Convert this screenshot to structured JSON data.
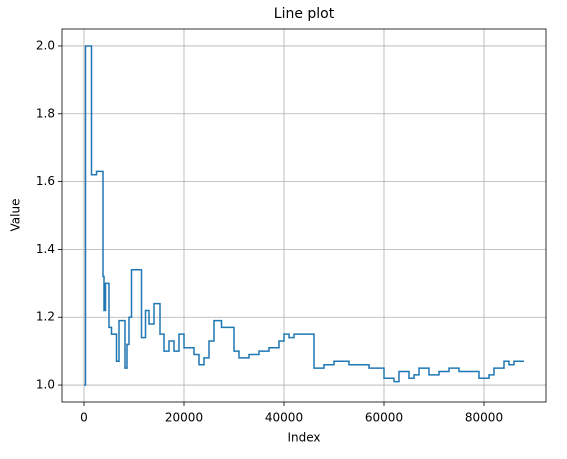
{
  "chart_data": {
    "type": "line",
    "title": "Line plot",
    "x_label": "Index",
    "y_label": "Value",
    "drawstyle": "steps-post",
    "grid": true,
    "xlim": [
      -4400,
      92400
    ],
    "ylim": [
      0.95,
      2.05
    ],
    "xticks": [
      0,
      20000,
      40000,
      60000,
      80000
    ],
    "yticks": [
      {
        "value": 1.0,
        "label": "1.0"
      },
      {
        "value": 1.2,
        "label": "1.2"
      },
      {
        "value": 1.4,
        "label": "1.4"
      },
      {
        "value": 1.6,
        "label": "1.6"
      },
      {
        "value": 1.8,
        "label": "1.8"
      },
      {
        "value": 2.0,
        "label": "2.0"
      }
    ],
    "x": [
      0,
      300,
      1500,
      2500,
      3800,
      4000,
      4300,
      5000,
      5500,
      6500,
      7000,
      8200,
      8600,
      9000,
      9500,
      11500,
      12300,
      13000,
      14000,
      15200,
      16000,
      17000,
      18000,
      19000,
      20000,
      22000,
      23000,
      24000,
      25000,
      26000,
      27500,
      30000,
      31000,
      33000,
      35000,
      37000,
      39000,
      40000,
      41000,
      42000,
      46000,
      48000,
      50000,
      53000,
      55000,
      57000,
      59000,
      60000,
      62000,
      63000,
      65000,
      66000,
      67000,
      69000,
      71000,
      73000,
      75000,
      78000,
      79000,
      81000,
      82000,
      84000,
      85000,
      86000,
      88000
    ],
    "series": [
      {
        "name": "Value",
        "color": "#1f77b4",
        "values": [
          1.0,
          2.0,
          1.62,
          1.63,
          1.32,
          1.22,
          1.3,
          1.17,
          1.15,
          1.07,
          1.19,
          1.05,
          1.12,
          1.2,
          1.34,
          1.14,
          1.22,
          1.18,
          1.24,
          1.15,
          1.1,
          1.13,
          1.1,
          1.15,
          1.11,
          1.09,
          1.06,
          1.08,
          1.13,
          1.19,
          1.17,
          1.1,
          1.08,
          1.09,
          1.1,
          1.11,
          1.13,
          1.15,
          1.14,
          1.15,
          1.05,
          1.06,
          1.07,
          1.06,
          1.06,
          1.05,
          1.05,
          1.02,
          1.01,
          1.04,
          1.02,
          1.03,
          1.05,
          1.03,
          1.04,
          1.05,
          1.04,
          1.04,
          1.02,
          1.03,
          1.05,
          1.07,
          1.06,
          1.07,
          1.07
        ]
      }
    ]
  }
}
